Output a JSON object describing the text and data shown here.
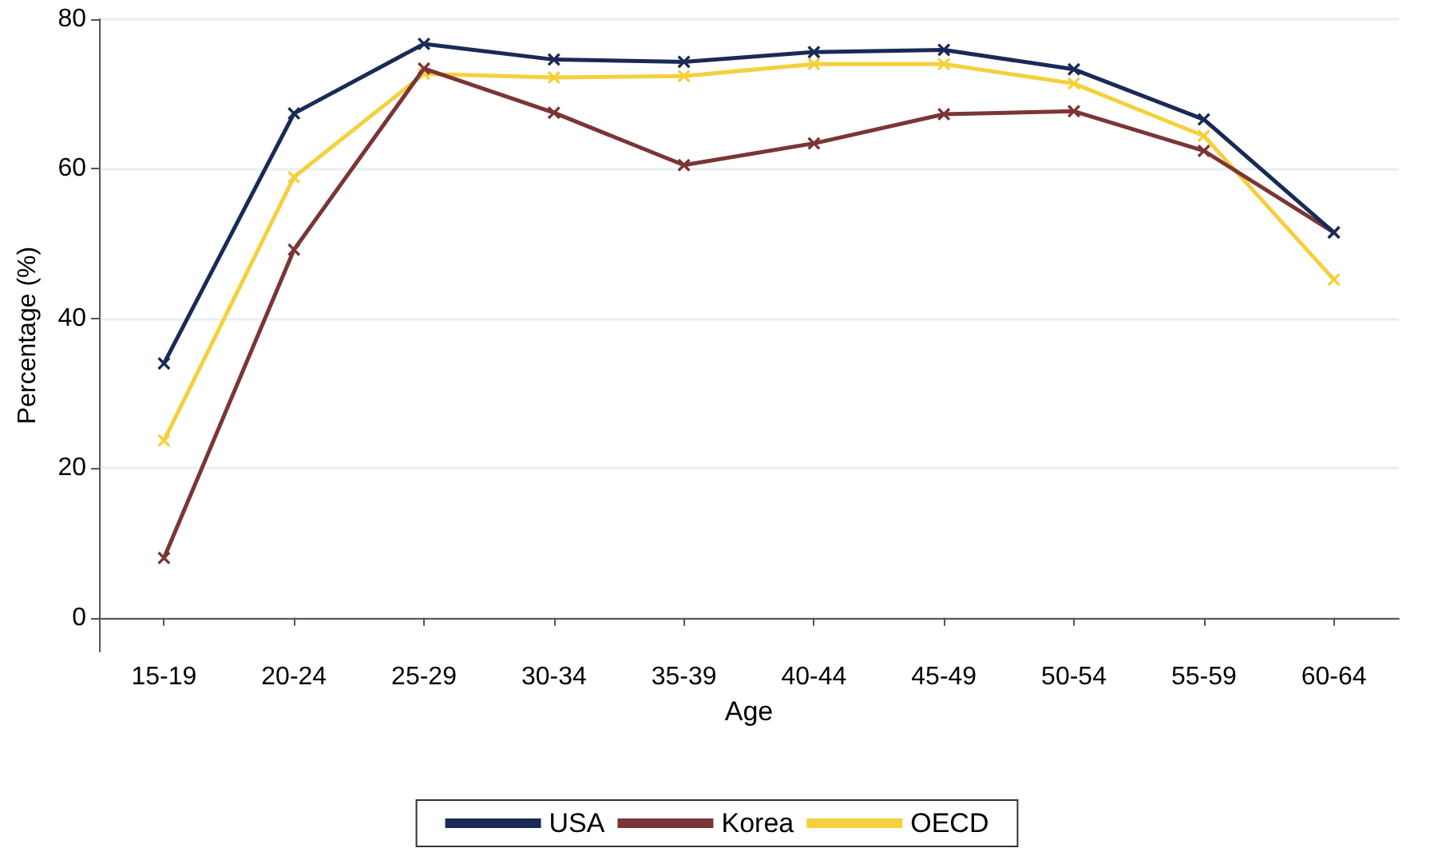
{
  "chart_data": {
    "type": "line",
    "xlabel": "Age",
    "ylabel": "Percentage (%)",
    "categories": [
      "15-19",
      "20-24",
      "25-29",
      "30-34",
      "35-39",
      "40-44",
      "45-49",
      "50-54",
      "55-59",
      "60-64"
    ],
    "series": [
      {
        "name": "USA",
        "color": "#1a2a57",
        "values": [
          34.0,
          67.4,
          76.7,
          74.6,
          74.3,
          75.6,
          75.9,
          73.3,
          66.6,
          51.5
        ]
      },
      {
        "name": "Korea",
        "color": "#7b3535",
        "values": [
          8.0,
          49.2,
          73.4,
          67.5,
          60.5,
          63.4,
          67.3,
          67.7,
          62.4,
          51.5
        ]
      },
      {
        "name": "OECD",
        "color": "#f5d03c",
        "values": [
          23.7,
          58.9,
          72.7,
          72.2,
          72.4,
          74.0,
          74.0,
          71.4,
          64.4,
          45.2
        ]
      }
    ],
    "ylim": [
      -4.5,
      80
    ],
    "yticks": [
      0,
      20,
      40,
      60,
      80
    ],
    "grid": "y",
    "legend": "bottom",
    "marker": "cross",
    "line_style": "solid"
  }
}
